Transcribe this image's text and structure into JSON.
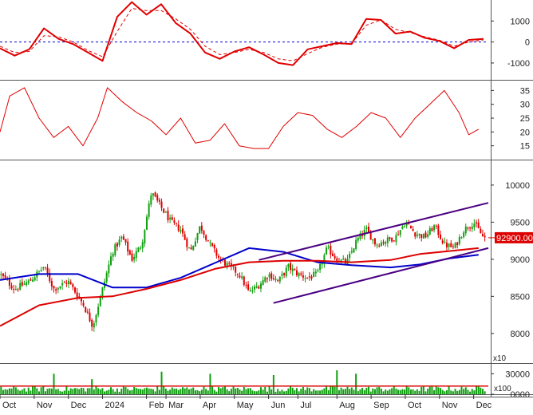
{
  "colors": {
    "macd": "#e00000",
    "signal": "#e00000",
    "zero_line": "#0000cc",
    "rsi": "#e00000",
    "candle_up": "#10a010",
    "candle_down": "#e00000",
    "ma_blue": "#0000cc",
    "ma_red": "#dd0000",
    "channel": "#4b0082",
    "volume": "#10a010",
    "price_badge_bg": "#dd0000",
    "price_badge_text": "#ffffff"
  },
  "chart_data": [
    {
      "type": "line",
      "panel": "macd",
      "ylim": [
        -1800,
        2000
      ],
      "yticks": [
        "1000",
        "0",
        "-1000"
      ],
      "ytick_values": [
        1000,
        0,
        -1000
      ],
      "zero_line": 0,
      "x_range": [
        0,
        100
      ],
      "series": [
        {
          "key": "macd",
          "style": "solid",
          "x": [
            0,
            3,
            6,
            9,
            12,
            15,
            18,
            21,
            24,
            27,
            30,
            33,
            36,
            39,
            42,
            45,
            48,
            51,
            54,
            57,
            60,
            63,
            66,
            69,
            72,
            75,
            78,
            81,
            84,
            87,
            90,
            93,
            96,
            99
          ],
          "values": [
            -300,
            -650,
            -350,
            650,
            150,
            -100,
            -500,
            -900,
            1200,
            1900,
            1300,
            1800,
            900,
            400,
            -500,
            -800,
            -450,
            -250,
            -600,
            -1000,
            -1100,
            -350,
            -200,
            -50,
            -100,
            1100,
            1050,
            400,
            500,
            200,
            50,
            -300,
            100,
            150
          ]
        },
        {
          "key": "signal",
          "style": "dashed",
          "x": [
            0,
            3,
            6,
            9,
            12,
            15,
            18,
            21,
            24,
            27,
            30,
            33,
            36,
            39,
            42,
            45,
            48,
            51,
            54,
            57,
            60,
            63,
            66,
            69,
            72,
            75,
            78,
            81,
            84,
            87,
            90,
            93,
            96,
            99
          ],
          "values": [
            -200,
            -500,
            -450,
            300,
            250,
            0,
            -400,
            -700,
            500,
            1600,
            1500,
            1500,
            1100,
            600,
            -200,
            -600,
            -500,
            -350,
            -500,
            -800,
            -900,
            -550,
            -250,
            -100,
            -80,
            800,
            1050,
            600,
            450,
            250,
            80,
            -200,
            0,
            100
          ]
        }
      ]
    },
    {
      "type": "line",
      "panel": "rsi",
      "ylim": [
        10,
        38
      ],
      "yticks": [
        "35",
        "30",
        "25",
        "20",
        "15"
      ],
      "ytick_values": [
        35,
        30,
        25,
        20,
        15
      ],
      "x_range": [
        0,
        100
      ],
      "series": [
        {
          "key": "rsi",
          "x": [
            0,
            2,
            5,
            8,
            11,
            14,
            17,
            20,
            22,
            25,
            28,
            31,
            34,
            37,
            40,
            43,
            46,
            49,
            52,
            55,
            58,
            61,
            64,
            67,
            70,
            73,
            76,
            79,
            82,
            85,
            88,
            91,
            94,
            96,
            98
          ],
          "values": [
            20,
            33,
            36,
            25,
            18,
            22,
            15,
            25,
            36,
            31,
            27,
            24,
            19,
            25,
            16,
            17,
            23,
            15,
            14,
            14,
            22,
            27,
            26,
            21,
            18,
            22,
            27,
            25,
            18,
            25,
            30,
            35,
            27,
            19,
            21
          ]
        }
      ]
    },
    {
      "type": "candlestick",
      "panel": "price",
      "ylim": [
        7600,
        10300
      ],
      "yticks": [
        "10000",
        "9500",
        "9000",
        "8500",
        "8000"
      ],
      "ytick_values": [
        10000,
        9500,
        9000,
        8500,
        8000
      ],
      "scale_label": "x10",
      "last_price_label": "92900.00",
      "last_price": 9290,
      "x_range": [
        0,
        100
      ],
      "close_path": {
        "x": [
          0,
          3,
          6,
          9,
          11,
          14,
          17,
          19,
          21,
          23,
          25,
          27,
          29,
          31,
          33,
          35,
          37,
          39,
          41,
          43,
          45,
          47,
          49,
          51,
          53,
          55,
          57,
          59,
          61,
          63,
          65,
          67,
          69,
          71,
          73,
          75,
          77,
          79,
          81,
          83,
          85,
          87,
          89,
          91,
          93,
          95,
          97,
          99
        ],
        "y": [
          8800,
          8600,
          8700,
          8900,
          8600,
          8700,
          8400,
          8100,
          8600,
          9100,
          9300,
          9000,
          9200,
          9900,
          9700,
          9500,
          9400,
          9100,
          9450,
          9200,
          9000,
          8900,
          8800,
          8550,
          8650,
          8800,
          8700,
          8900,
          8800,
          8750,
          8800,
          9150,
          9000,
          8950,
          9250,
          9400,
          9200,
          9250,
          9300,
          9500,
          9350,
          9300,
          9450,
          9200,
          9150,
          9400,
          9500,
          9290
        ]
      },
      "ma_series": [
        {
          "key": "ma_blue",
          "x": [
            0,
            8,
            16,
            23,
            30,
            37,
            44,
            51,
            58,
            65,
            72,
            80,
            86,
            92,
            98
          ],
          "values": [
            8720,
            8800,
            8800,
            8620,
            8620,
            8750,
            8950,
            9150,
            9100,
            8960,
            8920,
            8890,
            8930,
            9010,
            9060
          ]
        },
        {
          "key": "ma_red",
          "x": [
            0,
            8,
            16,
            23,
            30,
            37,
            44,
            51,
            58,
            65,
            72,
            80,
            86,
            92,
            98
          ],
          "values": [
            8100,
            8380,
            8480,
            8500,
            8600,
            8720,
            8870,
            8960,
            8980,
            8980,
            8960,
            8990,
            9070,
            9110,
            9150
          ]
        }
      ],
      "trend_channel": {
        "upper": {
          "x": [
            53,
            100
          ],
          "values": [
            8990,
            9760
          ]
        },
        "lower": {
          "x": [
            56,
            100
          ],
          "values": [
            8410,
            9150
          ]
        }
      }
    },
    {
      "type": "bar",
      "panel": "volume",
      "ylim": [
        0,
        42000
      ],
      "yticks": [
        "30000",
        "0000"
      ],
      "ytick_values": [
        30000,
        0
      ],
      "scale_label": "x100",
      "x_range": [
        0,
        100
      ],
      "spikes": {
        "x": [
          11,
          19,
          33,
          43,
          56,
          69,
          73
        ],
        "values": [
          30000,
          22000,
          33000,
          30000,
          28000,
          35000,
          30000
        ]
      },
      "baseline_level": 9000,
      "moving_average_level": 12000
    }
  ],
  "x_axis": {
    "labels": [
      "Oct",
      "Nov",
      "Dec",
      "2024",
      "Feb",
      "Mar",
      "Apr",
      "May",
      "Jun",
      "Jul",
      "Aug",
      "Sep",
      "Oct",
      "Nov",
      "Dec"
    ],
    "positions": [
      0,
      7,
      14,
      21,
      30,
      34,
      41,
      48,
      55,
      61,
      69,
      76,
      83,
      90,
      97
    ]
  }
}
